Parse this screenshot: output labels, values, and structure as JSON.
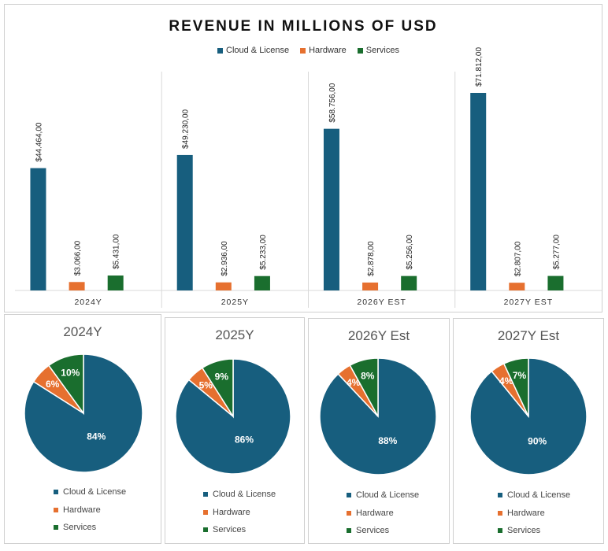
{
  "colors": {
    "cloud": "#175e7e",
    "hardware": "#e6702f",
    "services": "#1a6e2e"
  },
  "bar_chart": {
    "title": "REVENUE IN MILLIONS OF USD",
    "legend": [
      "Cloud & License",
      "Hardware",
      "Services"
    ]
  },
  "pies": [
    {
      "title": "2024Y",
      "legend": [
        "Cloud & License",
        "Hardware",
        "Services"
      ]
    },
    {
      "title": "2025Y",
      "legend": [
        "Cloud & License",
        "Hardware",
        "Services"
      ]
    },
    {
      "title": "2026Y Est",
      "legend": [
        "Cloud & License",
        "Hardware",
        "Services"
      ]
    },
    {
      "title": "2027Y Est",
      "legend": [
        "Cloud & License",
        "Hardware",
        "Services"
      ]
    }
  ],
  "chart_data": [
    {
      "type": "bar",
      "title": "REVENUE IN MILLIONS OF USD",
      "categories": [
        "2024Y",
        "2025Y",
        "2026Y EST",
        "2027Y EST"
      ],
      "series": [
        {
          "name": "Cloud & License",
          "values": [
            44464,
            49230,
            58756,
            71812
          ],
          "labels": [
            "$44.464,00",
            "$49.230,00",
            "$58.756,00",
            "$71.812,00"
          ]
        },
        {
          "name": "Hardware",
          "values": [
            3066,
            2936,
            2878,
            2807
          ],
          "labels": [
            "$3.066,00",
            "$2.936,00",
            "$2.878,00",
            "$2.807,00"
          ]
        },
        {
          "name": "Services",
          "values": [
            5431,
            5233,
            5256,
            5277
          ],
          "labels": [
            "$5.431,00",
            "$5.233,00",
            "$5.256,00",
            "$5.277,00"
          ]
        }
      ],
      "legend_position": "top",
      "grid": false
    },
    {
      "type": "pie",
      "title": "2024Y",
      "labels": [
        "Cloud & License",
        "Hardware",
        "Services"
      ],
      "values": [
        84,
        6,
        10
      ],
      "value_labels": [
        "84%",
        "6%",
        "10%"
      ]
    },
    {
      "type": "pie",
      "title": "2025Y",
      "labels": [
        "Cloud & License",
        "Hardware",
        "Services"
      ],
      "values": [
        86,
        5,
        9
      ],
      "value_labels": [
        "86%",
        "5%",
        "9%"
      ]
    },
    {
      "type": "pie",
      "title": "2026Y Est",
      "labels": [
        "Cloud & License",
        "Hardware",
        "Services"
      ],
      "values": [
        88,
        4,
        8
      ],
      "value_labels": [
        "88%",
        "4%",
        "8%"
      ]
    },
    {
      "type": "pie",
      "title": "2027Y Est",
      "labels": [
        "Cloud & License",
        "Hardware",
        "Services"
      ],
      "values": [
        90,
        4,
        7
      ],
      "value_labels": [
        "90%",
        "4%",
        "7%"
      ]
    }
  ]
}
